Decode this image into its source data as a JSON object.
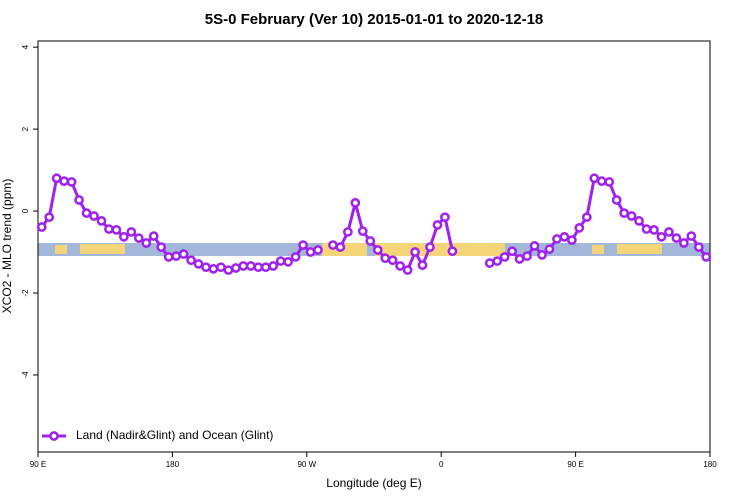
{
  "chart_data": {
    "type": "line",
    "title": "5S-0 February (Ver 10)   2015-01-01 to 2020-12-18",
    "xlabel": "Longitude (deg E)",
    "ylabel": "XCO2 - MLO trend (ppm)",
    "xlim": [
      90,
      540
    ],
    "ylim": [
      -5.88,
      4.15
    ],
    "xticks": [
      {
        "value": 90,
        "label": "90 E"
      },
      180,
      {
        "value": 270,
        "label": "90 W"
      },
      {
        "value": 360,
        "label": "0"
      },
      {
        "value": 450,
        "label": "90 E"
      },
      {
        "value": 540,
        "label": "180"
      }
    ],
    "yticks": [
      -4,
      -2,
      0,
      2,
      4
    ],
    "legend": "bottom-left",
    "x": [
      92.5,
      97.5,
      102.5,
      107.5,
      112.5,
      117.5,
      122.5,
      127.5,
      132.5,
      137.5,
      142.5,
      147.5,
      152.5,
      157.5,
      162.5,
      167.5,
      172.5,
      177.5,
      182.5,
      187.5,
      192.5,
      197.5,
      202.5,
      207.5,
      212.5,
      217.5,
      222.5,
      227.5,
      232.5,
      237.5,
      242.5,
      247.5,
      252.5,
      257.5,
      262.5,
      267.5,
      272.5,
      277.5,
      282.5,
      287.5,
      292.5,
      297.5,
      302.5,
      307.5,
      312.5,
      317.5,
      322.5,
      327.5,
      332.5,
      337.5,
      342.5,
      347.5,
      352.5,
      357.5,
      362.5,
      367.5,
      372.5,
      377.5,
      382.5,
      387.5,
      392.5,
      397.5,
      402.5,
      407.5,
      412.5,
      417.5,
      422.5,
      427.5,
      432.5,
      437.5,
      442.5,
      447.5,
      452.5,
      457.5,
      462.5,
      467.5,
      472.5,
      477.5,
      482.5,
      487.5,
      492.5,
      497.5,
      502.5,
      507.5,
      512.5,
      517.5,
      522.5,
      527.5,
      532.5,
      537.5
    ],
    "series": [
      {
        "name": "Land (Nadir&Glint) and Ocean (Glint)",
        "color": "#a020f0",
        "values": [
          -0.39,
          -0.15,
          0.8,
          0.73,
          0.71,
          0.27,
          -0.05,
          -0.12,
          -0.24,
          -0.44,
          -0.46,
          -0.63,
          -0.51,
          -0.66,
          -0.78,
          -0.61,
          -0.88,
          -1.12,
          -1.1,
          -1.05,
          -1.2,
          -1.29,
          -1.37,
          -1.41,
          -1.37,
          -1.44,
          -1.39,
          -1.34,
          -1.34,
          -1.37,
          -1.37,
          -1.34,
          -1.22,
          -1.24,
          -1.12,
          -0.83,
          -1.0,
          -0.95,
          null,
          -0.83,
          -0.88,
          -0.51,
          0.2,
          -0.49,
          -0.73,
          -0.95,
          -1.15,
          -1.2,
          -1.34,
          -1.44,
          -1.0,
          -1.32,
          -0.88,
          -0.34,
          -0.15,
          -0.98,
          null,
          null,
          null,
          null,
          -1.27,
          -1.22,
          -1.12,
          -0.98,
          -1.17,
          -1.1,
          -0.85,
          -1.07,
          -0.93,
          -0.68,
          -0.63,
          -0.71,
          -0.41,
          -0.15,
          0.8,
          0.73,
          0.71,
          0.27,
          -0.05,
          -0.12,
          -0.24,
          -0.44,
          -0.46,
          -0.63,
          -0.51,
          -0.66,
          -0.78,
          -0.61,
          -0.88,
          -1.12
        ]
      }
    ]
  }
}
